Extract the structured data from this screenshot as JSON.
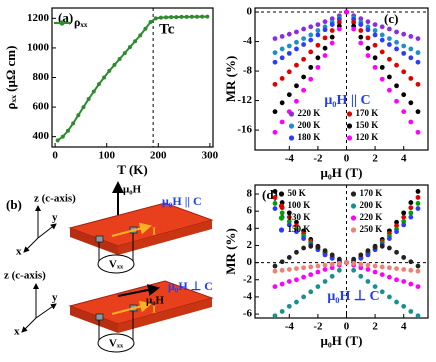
{
  "chart_data": [
    {
      "type": "line",
      "panel_label": "(a)",
      "x_label": "T (K)",
      "y_label": "ρₓₓ (μΩ cm)",
      "x": [
        5,
        15,
        25,
        35,
        45,
        55,
        65,
        75,
        85,
        95,
        105,
        115,
        125,
        135,
        145,
        155,
        165,
        175,
        185,
        195,
        205,
        215,
        225,
        235,
        245,
        255,
        265,
        275,
        285,
        295
      ],
      "series": [
        {
          "name": "ρₓₓ",
          "color": "#2e8b2e",
          "values": [
            375,
            400,
            440,
            490,
            545,
            600,
            655,
            705,
            755,
            800,
            845,
            885,
            925,
            965,
            1005,
            1045,
            1085,
            1130,
            1175,
            1200,
            1205,
            1207,
            1208,
            1208,
            1210,
            1210,
            1211,
            1211,
            1212,
            1212
          ]
        }
      ],
      "xlim": [
        -6,
        306
      ],
      "ylim": [
        330,
        1270
      ],
      "xticks": [
        0,
        100,
        200,
        300
      ],
      "yticks": [
        400,
        600,
        800,
        1000,
        1200
      ],
      "vline": 190,
      "annotation": "Tc",
      "legend": "upper left"
    },
    {
      "type": "scatter",
      "panel_label": "(c)",
      "x_label": "μ₀H (T)",
      "y_label": "MR (%)",
      "x": [
        -5,
        -4.5,
        -4,
        -3.5,
        -3,
        -2.5,
        -2,
        -1.5,
        -1,
        -0.5,
        0,
        0.5,
        1,
        1.5,
        2,
        2.5,
        3,
        3.5,
        4,
        4.5,
        5
      ],
      "series": [
        {
          "name": "220 K",
          "color": "#8b2be2",
          "values": [
            -3.6,
            -3.3,
            -3.0,
            -2.7,
            -2.3,
            -2.0,
            -1.7,
            -1.3,
            -0.9,
            -0.5,
            0,
            -0.5,
            -0.9,
            -1.3,
            -1.7,
            -2.0,
            -2.3,
            -2.7,
            -3.0,
            -3.3,
            -3.6
          ]
        },
        {
          "name": "200 K",
          "color": "#1e90c8",
          "values": [
            -5.5,
            -5.0,
            -4.6,
            -4.1,
            -3.6,
            -3.1,
            -2.5,
            -2.0,
            -1.4,
            -0.8,
            0,
            -0.8,
            -1.4,
            -2.0,
            -2.5,
            -3.1,
            -3.6,
            -4.1,
            -4.6,
            -5.0,
            -5.5
          ]
        },
        {
          "name": "180 K",
          "color": "#2a3cff",
          "values": [
            -6.8,
            -6.2,
            -5.6,
            -5.0,
            -4.4,
            -3.8,
            -3.1,
            -2.4,
            -1.7,
            -1.0,
            0,
            -1.0,
            -1.7,
            -2.4,
            -3.1,
            -3.8,
            -4.4,
            -5.0,
            -5.6,
            -6.2,
            -6.8
          ]
        },
        {
          "name": "170 K",
          "color": "#e00000",
          "values": [
            -9.8,
            -9.0,
            -8.1,
            -7.2,
            -6.4,
            -5.4,
            -4.5,
            -3.5,
            -2.5,
            -1.4,
            0,
            -1.4,
            -2.5,
            -3.5,
            -4.5,
            -5.4,
            -6.4,
            -7.2,
            -8.1,
            -9.0,
            -9.8
          ]
        },
        {
          "name": "150 K",
          "color": "#000000",
          "values": [
            -13.5,
            -12.3,
            -11.2,
            -10.0,
            -8.8,
            -7.5,
            -6.2,
            -4.9,
            -3.4,
            -1.9,
            0,
            -1.9,
            -3.4,
            -4.9,
            -6.2,
            -7.5,
            -8.8,
            -10.0,
            -11.2,
            -12.3,
            -13.5
          ]
        },
        {
          "name": "120 K",
          "color": "#ff00ff",
          "values": [
            -16.3,
            -14.9,
            -13.5,
            -12.1,
            -10.6,
            -9.1,
            -7.5,
            -5.9,
            -4.2,
            -2.3,
            0,
            -2.3,
            -4.2,
            -5.9,
            -7.5,
            -9.1,
            -10.6,
            -12.1,
            -13.5,
            -14.9,
            -16.3
          ]
        }
      ],
      "xlim": [
        -6.4,
        5.7
      ],
      "ylim": [
        -18.7,
        0.55
      ],
      "xticks": [
        -4,
        -2,
        0,
        2,
        4
      ],
      "yticks": [
        0,
        -4,
        -8,
        -12,
        -16
      ],
      "vline": 0,
      "hline": 0,
      "annotation": "μ₀H || C",
      "legend": "lower center"
    },
    {
      "type": "scatter",
      "panel_label": "(d)",
      "x_label": "μ₀H (T)",
      "y_label": "MR (%)",
      "x": [
        -5,
        -4.5,
        -4,
        -3.5,
        -3,
        -2.5,
        -2,
        -1.5,
        -1,
        -0.5,
        0,
        0.5,
        1,
        1.5,
        2,
        2.5,
        3,
        3.5,
        4,
        4.5,
        5
      ],
      "series": [
        {
          "name": "50 K",
          "color": "#000000",
          "values": [
            8.3,
            7.0,
            5.8,
            4.7,
            3.7,
            2.7,
            1.9,
            1.2,
            0.6,
            0.2,
            0,
            0.2,
            0.6,
            1.2,
            1.9,
            2.7,
            3.7,
            4.7,
            5.8,
            7.0,
            8.3
          ]
        },
        {
          "name": "100 K",
          "color": "#e00000",
          "values": [
            7.6,
            6.4,
            5.3,
            4.3,
            3.4,
            2.5,
            1.8,
            1.1,
            0.6,
            0.2,
            0,
            0.2,
            0.6,
            1.1,
            1.8,
            2.5,
            3.4,
            4.3,
            5.3,
            6.4,
            7.6
          ]
        },
        {
          "name": "130 K",
          "color": "#00a000",
          "values": [
            6.9,
            5.8,
            4.8,
            3.9,
            3.1,
            2.3,
            1.6,
            1.0,
            0.5,
            0.2,
            0,
            0.2,
            0.5,
            1.0,
            1.6,
            2.3,
            3.1,
            3.9,
            4.8,
            5.8,
            6.9
          ]
        },
        {
          "name": "150 K",
          "color": "#2a3cff",
          "values": [
            6.3,
            5.3,
            4.4,
            3.6,
            2.8,
            2.1,
            1.5,
            0.9,
            0.5,
            0.2,
            0,
            0.2,
            0.5,
            0.9,
            1.5,
            2.1,
            2.8,
            3.6,
            4.4,
            5.3,
            6.3
          ]
        },
        {
          "name": "170 K",
          "color": "#222222",
          "values": [
            -0.4,
            0.1,
            0.6,
            1.2,
            1.7,
            1.9,
            1.8,
            1.4,
            0.9,
            0.4,
            0,
            0.4,
            0.9,
            1.4,
            1.8,
            1.9,
            1.7,
            1.2,
            0.6,
            0.1,
            -0.4
          ]
        },
        {
          "name": "200 K",
          "color": "#1a8f8f",
          "values": [
            -6.2,
            -5.7,
            -5.1,
            -4.6,
            -4.0,
            -3.4,
            -2.8,
            -2.2,
            -1.6,
            -0.9,
            0,
            -0.9,
            -1.6,
            -2.2,
            -2.8,
            -3.4,
            -4.0,
            -4.6,
            -5.1,
            -5.7,
            -6.2
          ]
        },
        {
          "name": "220 K",
          "color": "#ff00ff",
          "values": [
            -2.8,
            -2.5,
            -2.2,
            -2.0,
            -1.7,
            -1.4,
            -1.1,
            -0.8,
            -0.6,
            -0.3,
            0,
            -0.3,
            -0.6,
            -0.8,
            -1.1,
            -1.4,
            -1.7,
            -2.0,
            -2.2,
            -2.5,
            -2.8
          ]
        },
        {
          "name": "250 K",
          "color": "#f08070",
          "values": [
            -1.0,
            -0.9,
            -0.8,
            -0.7,
            -0.6,
            -0.5,
            -0.4,
            -0.3,
            -0.2,
            -0.1,
            0,
            -0.1,
            -0.2,
            -0.3,
            -0.4,
            -0.5,
            -0.6,
            -0.7,
            -0.8,
            -0.9,
            -1.0
          ]
        }
      ],
      "xlim": [
        -6.4,
        5.7
      ],
      "ylim": [
        -6.46,
        9.05
      ],
      "xticks": [
        -4,
        -2,
        0,
        2,
        4
      ],
      "yticks": [
        -6,
        -4,
        -2,
        0,
        2,
        4,
        6,
        8
      ],
      "vline": 0,
      "hline": 0,
      "annotation": "μ₀H ⊥ C",
      "legend": "upper center"
    }
  ],
  "diagram": {
    "label": "(b)",
    "top": {
      "axis_z": "z (c-axis)",
      "axis_y": "y",
      "axis_x": "x",
      "field": "μ₀H",
      "geometry": "μ₀H || C",
      "current": "I",
      "voltage": "Vₓₓ"
    },
    "bottom": {
      "axis_z": "z (c-axis)",
      "axis_y": "y",
      "axis_x": "x",
      "field": "μ₀H",
      "geometry": "μ₀H ⊥ C",
      "current": "I",
      "voltage": "Vₓₓ"
    }
  }
}
